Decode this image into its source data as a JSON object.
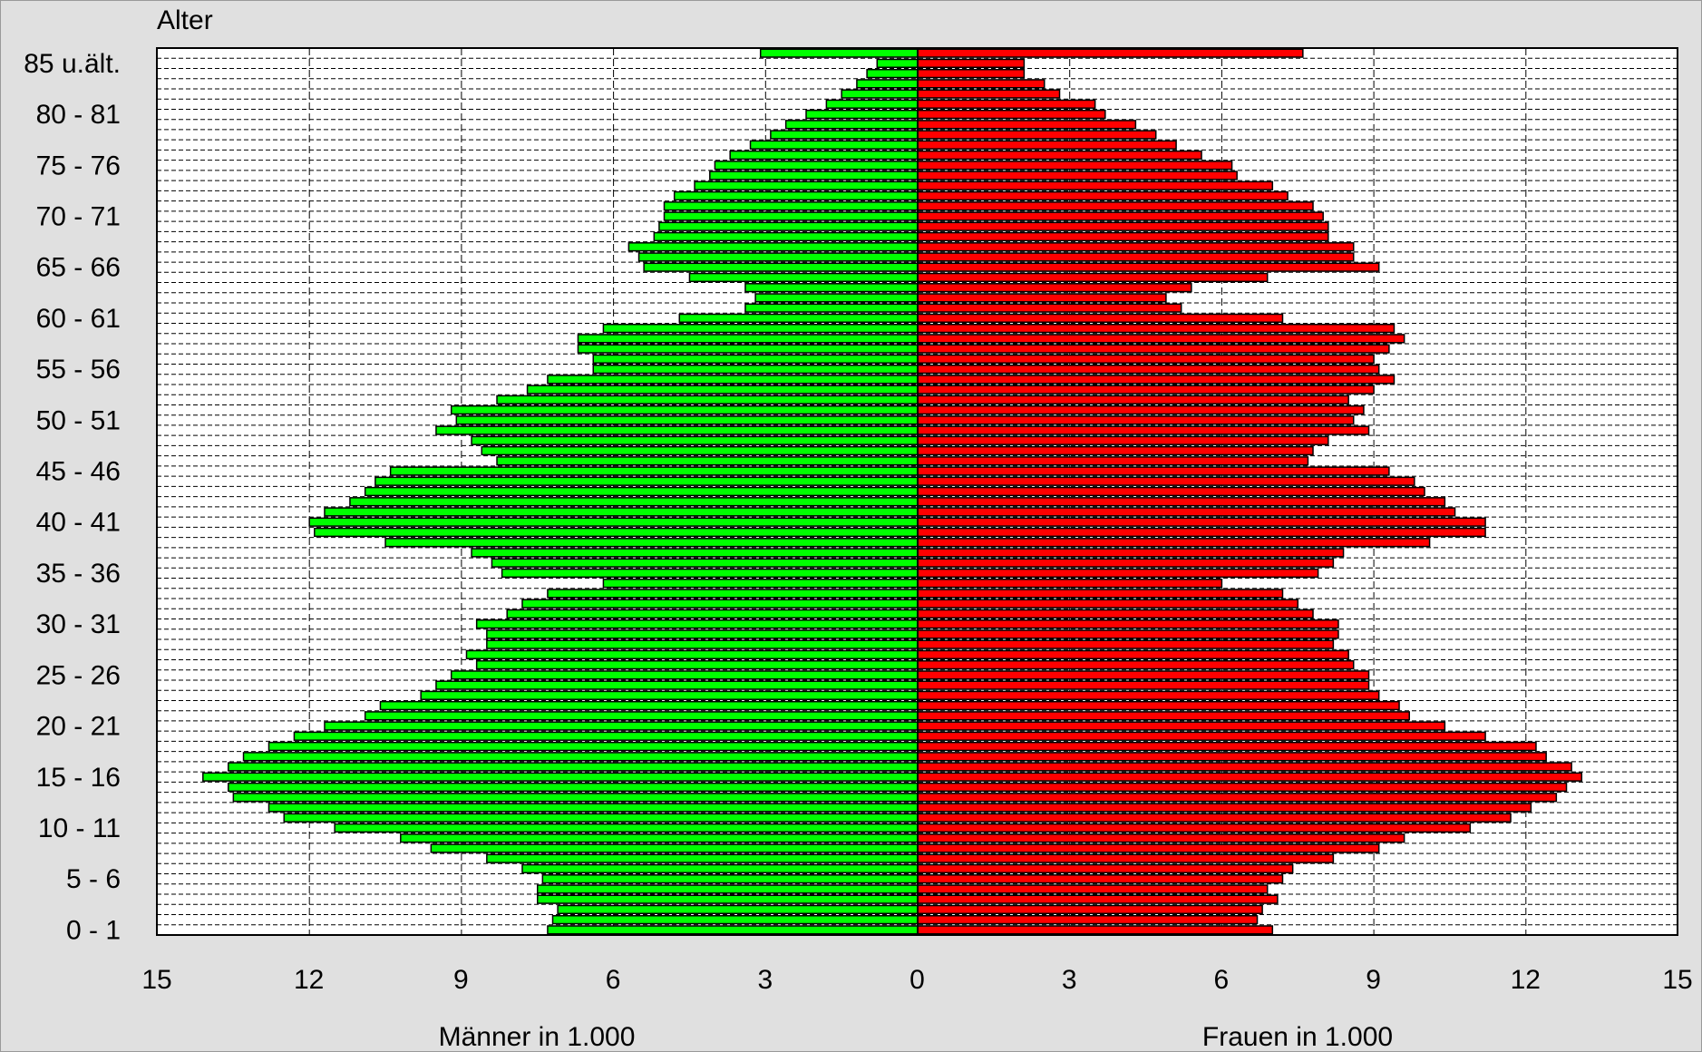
{
  "chart_data": {
    "type": "bar",
    "subtype": "population-pyramid",
    "y_axis_title": "Alter",
    "xlabel_left": "Männer in 1.000",
    "xlabel_right": "Frauen in 1.000",
    "xlim": [
      -15,
      15
    ],
    "x_ticks": [
      15,
      12,
      9,
      6,
      3,
      0,
      3,
      6,
      9,
      12,
      15
    ],
    "y_tick_labels": [
      "85 u.ält.",
      "80 - 81",
      "75 - 76",
      "70 - 71",
      "65 - 66",
      "60 - 61",
      "55 - 56",
      "50 - 51",
      "45 - 46",
      "40 - 41",
      "35 - 36",
      "30 - 31",
      "25 - 26",
      "20 - 21",
      "15 - 16",
      "10 - 11",
      "5 - 6",
      "0 - 1"
    ],
    "y_tick_indices": [
      85,
      80,
      75,
      70,
      65,
      60,
      55,
      50,
      45,
      40,
      35,
      30,
      25,
      20,
      15,
      10,
      5,
      0
    ],
    "grid": true,
    "age_groups_bottom_to_top": "0 - 1 ... 84 - 85, 85 u.ält.",
    "series": [
      {
        "name": "Männer in 1.000",
        "color": "#00ff00",
        "values": [
          7.3,
          7.2,
          7.1,
          7.5,
          7.5,
          7.4,
          7.8,
          8.5,
          9.6,
          10.2,
          11.5,
          12.5,
          12.8,
          13.5,
          13.6,
          14.1,
          13.6,
          13.3,
          12.8,
          12.3,
          11.7,
          10.9,
          10.6,
          9.8,
          9.5,
          9.2,
          8.7,
          8.9,
          8.5,
          8.5,
          8.7,
          8.1,
          7.8,
          7.3,
          6.2,
          8.2,
          8.4,
          8.8,
          10.5,
          11.9,
          12.0,
          11.7,
          11.2,
          10.9,
          10.7,
          10.4,
          8.3,
          8.6,
          8.8,
          9.5,
          9.1,
          9.2,
          8.3,
          7.7,
          7.3,
          6.4,
          6.4,
          6.7,
          6.7,
          6.2,
          4.7,
          3.4,
          3.2,
          3.4,
          4.5,
          5.4,
          5.5,
          5.7,
          5.2,
          5.1,
          5.0,
          5.0,
          4.8,
          4.4,
          4.1,
          4.0,
          3.7,
          3.3,
          2.9,
          2.6,
          2.2,
          1.8,
          1.5,
          1.2,
          1.0,
          0.8,
          3.1
        ]
      },
      {
        "name": "Frauen in 1.000",
        "color": "#ff0000",
        "values": [
          7.0,
          6.7,
          6.8,
          7.1,
          6.9,
          7.2,
          7.4,
          8.2,
          9.1,
          9.6,
          10.9,
          11.7,
          12.1,
          12.6,
          12.8,
          13.1,
          12.9,
          12.4,
          12.2,
          11.2,
          10.4,
          9.7,
          9.5,
          9.1,
          8.9,
          8.9,
          8.6,
          8.5,
          8.2,
          8.3,
          8.3,
          7.8,
          7.5,
          7.2,
          6.0,
          7.9,
          8.2,
          8.4,
          10.1,
          11.2,
          11.2,
          10.6,
          10.4,
          10.0,
          9.8,
          9.3,
          7.7,
          7.8,
          8.1,
          8.9,
          8.6,
          8.8,
          8.5,
          9.0,
          9.4,
          9.1,
          9.0,
          9.3,
          9.6,
          9.4,
          7.2,
          5.2,
          4.9,
          5.4,
          6.9,
          9.1,
          8.6,
          8.6,
          8.1,
          8.1,
          8.0,
          7.8,
          7.3,
          7.0,
          6.3,
          6.2,
          5.6,
          5.1,
          4.7,
          4.3,
          3.7,
          3.5,
          2.8,
          2.5,
          2.1,
          2.1,
          7.6
        ]
      }
    ]
  }
}
